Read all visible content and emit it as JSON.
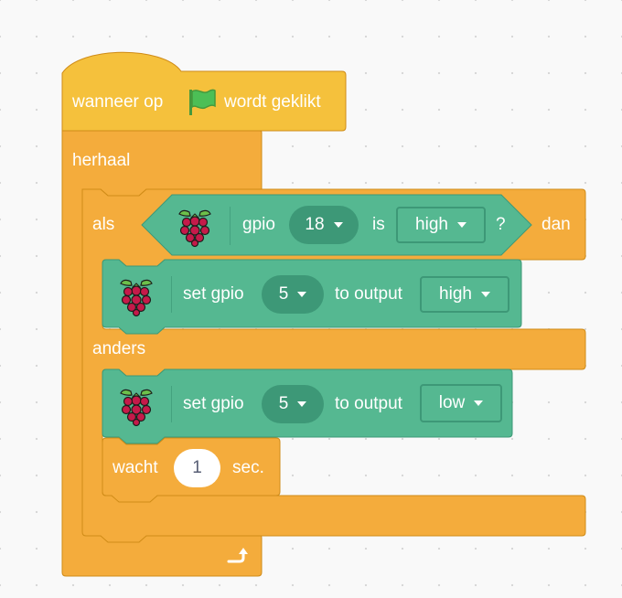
{
  "colors": {
    "control": "#f4ac3c",
    "control_dark": "#cf8b17",
    "event": "#f5c13c",
    "extension": "#55b891",
    "extension_dark": "#3d9877",
    "flag": "#4cbf56"
  },
  "hat_block": {
    "prefix": "wanneer op",
    "icon": "green-flag-icon",
    "suffix": "wordt geklikt"
  },
  "forever_block": {
    "label": "herhaal",
    "loop_icon": "loop-arrow-icon"
  },
  "if_else_block": {
    "if_label": "als",
    "then_label": "dan",
    "else_label": "anders"
  },
  "condition_block": {
    "icon": "raspberry-pi-icon",
    "label": "gpio",
    "pin": "18",
    "is_label": "is",
    "state": "high",
    "question": "?"
  },
  "set_gpio_high": {
    "icon": "raspberry-pi-icon",
    "label": "set gpio",
    "pin": "5",
    "to_label": "to output",
    "value": "high"
  },
  "set_gpio_low": {
    "icon": "raspberry-pi-icon",
    "label": "set gpio",
    "pin": "5",
    "to_label": "to output",
    "value": "low"
  },
  "wait_block": {
    "label": "wacht",
    "value": "1",
    "unit": "sec."
  }
}
